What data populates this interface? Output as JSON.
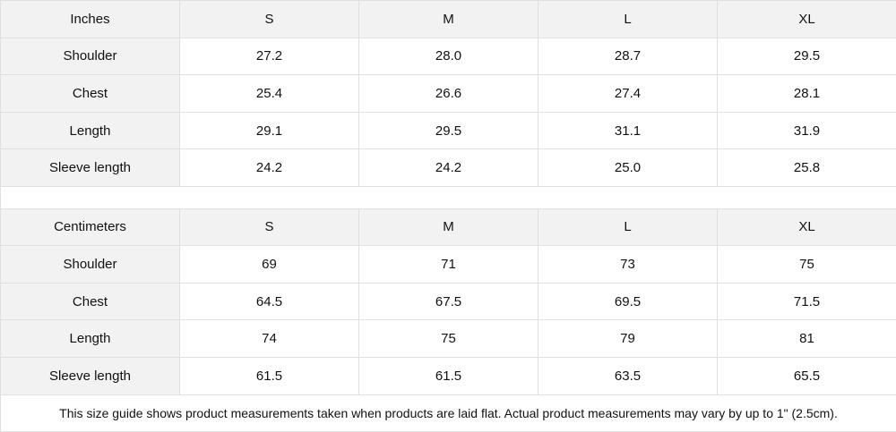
{
  "tables": [
    {
      "unit": "Inches",
      "sizes": [
        "S",
        "M",
        "L",
        "XL"
      ],
      "rows": [
        {
          "label": "Shoulder",
          "values": [
            "27.2",
            "28.0",
            "28.7",
            "29.5"
          ]
        },
        {
          "label": "Chest",
          "values": [
            "25.4",
            "26.6",
            "27.4",
            "28.1"
          ]
        },
        {
          "label": "Length",
          "values": [
            "29.1",
            "29.5",
            "31.1",
            "31.9"
          ]
        },
        {
          "label": "Sleeve length",
          "values": [
            "24.2",
            "24.2",
            "25.0",
            "25.8"
          ]
        }
      ]
    },
    {
      "unit": "Centimeters",
      "sizes": [
        "S",
        "M",
        "L",
        "XL"
      ],
      "rows": [
        {
          "label": "Shoulder",
          "values": [
            "69",
            "71",
            "73",
            "75"
          ]
        },
        {
          "label": "Chest",
          "values": [
            "64.5",
            "67.5",
            "69.5",
            "71.5"
          ]
        },
        {
          "label": "Length",
          "values": [
            "74",
            "75",
            "79",
            "81"
          ]
        },
        {
          "label": "Sleeve length",
          "values": [
            "61.5",
            "61.5",
            "63.5",
            "65.5"
          ]
        }
      ]
    }
  ],
  "note": "This size guide shows product measurements taken when products are laid flat.  Actual product measurements may vary by up to 1\" (2.5cm).",
  "colors": {
    "header_bg": "#f2f2f2",
    "border": "#e0e0e0"
  }
}
